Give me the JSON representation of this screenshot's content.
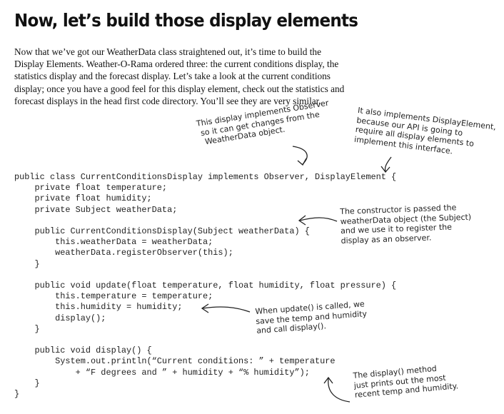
{
  "title": "Now, let’s build those display elements",
  "intro_lines": [
    "Now that we’ve got our WeatherData class straightened out, it’s time to build the",
    "Display Elements.  Weather-O-Rama ordered three: the current conditions display, the",
    "statistics display and the forecast display.  Let’s take a look at the current conditions",
    "display; once you have a good feel for this display element, check out the statistics and",
    "forecast displays in the head first code directory.  You’ll see they are very similar."
  ],
  "annotations": {
    "observer_note": [
      "This display implements Observer",
      "so it can get changes from the",
      "WeatherData object."
    ],
    "display_element_note": [
      "It also implements DisplayElement,",
      "because our API is going to",
      "require all display elements to",
      "implement this interface."
    ],
    "constructor_note": [
      "The constructor is passed the",
      "weatherData object (the Subject)",
      "and we use it to register the",
      "display as an observer."
    ],
    "update_note": [
      "When update() is called, we",
      "save the temp and humidity",
      "and call display()."
    ],
    "display_note": [
      "The display() method",
      "just prints out the most",
      "recent temp and humidity."
    ]
  },
  "code_lines": [
    "public class CurrentConditionsDisplay implements Observer, DisplayElement {",
    "    private float temperature;",
    "    private float humidity;",
    "    private Subject weatherData;",
    "",
    "    public CurrentConditionsDisplay(Subject weatherData) {",
    "        this.weatherData = weatherData;",
    "        weatherData.registerObserver(this);",
    "    }",
    "",
    "    public void update(float temperature, float humidity, float pressure) {",
    "        this.temperature = temperature;",
    "        this.humidity = humidity;",
    "        display();",
    "    }",
    "",
    "    public void display() {",
    "        System.out.println(“Current conditions: ” + temperature",
    "            + “F degrees and ” + humidity + “% humidity”);",
    "    }",
    "}"
  ]
}
